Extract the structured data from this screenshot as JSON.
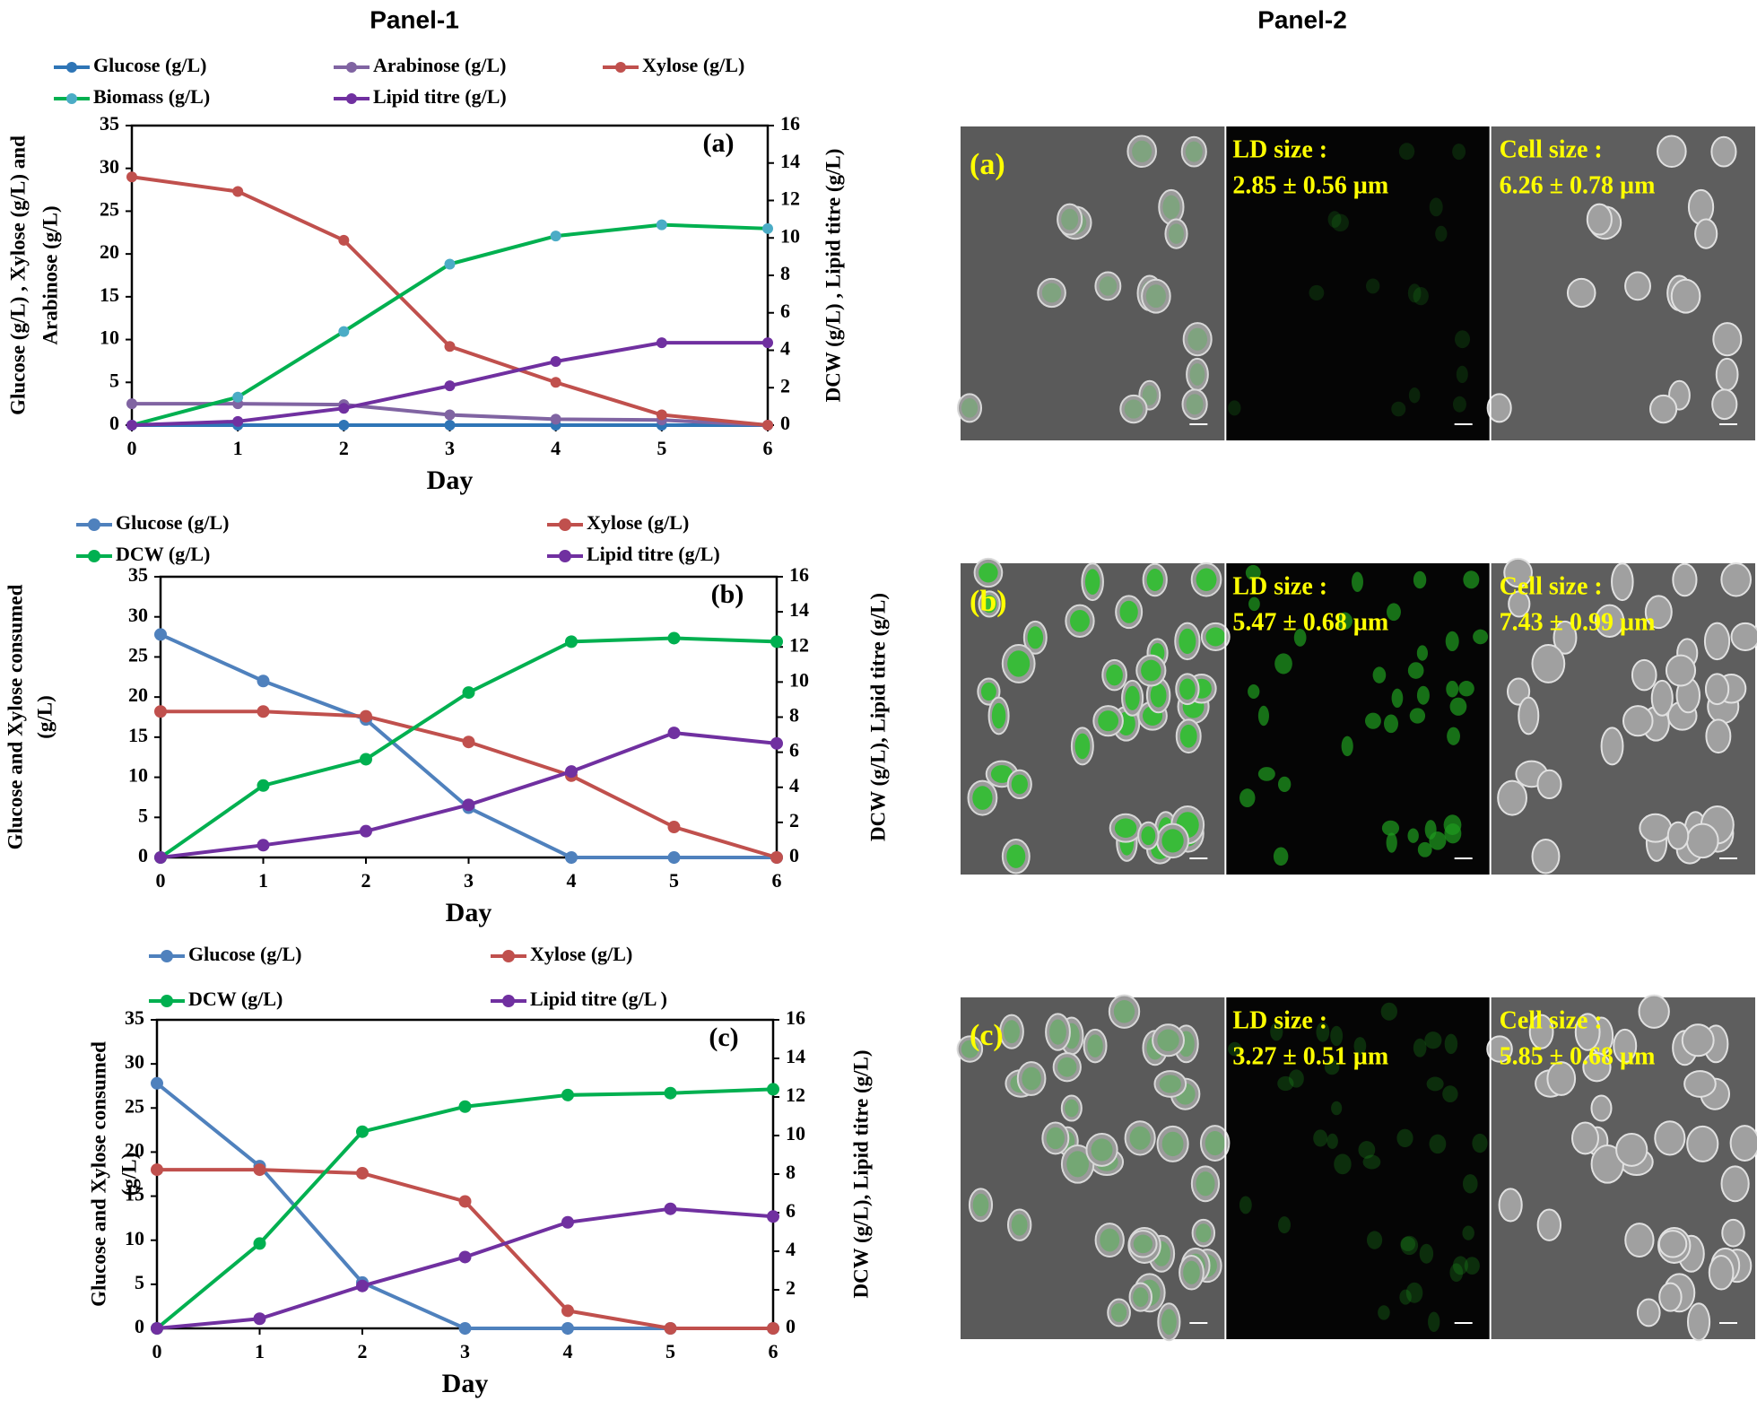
{
  "panels": [
    "Panel-1",
    "Panel-2"
  ],
  "chart_data": [
    {
      "type": "line",
      "annotation": "(a)",
      "xlabel": "Day",
      "ylabel": [
        "Glucose (g/L) , Xylose (g/L) and",
        "Arabinose (g/L)"
      ],
      "y2label": "DCW (g/L) , Lipid titre (g/L)",
      "x": [
        0,
        1,
        2,
        3,
        4,
        5,
        6
      ],
      "xlim": [
        0,
        6
      ],
      "xticks": [
        0,
        1,
        2,
        3,
        4,
        5,
        6
      ],
      "ylim": [
        0,
        35
      ],
      "yticks": [
        0,
        5,
        10,
        15,
        20,
        25,
        30,
        35
      ],
      "y2lim": [
        0,
        16
      ],
      "y2ticks": [
        0,
        2,
        4,
        6,
        8,
        10,
        12,
        14,
        16
      ],
      "series": [
        {
          "name": "Glucose (g/L)",
          "color": "#2e75b6",
          "values": [
            0,
            0,
            0,
            0,
            0,
            0,
            0
          ]
        },
        {
          "name": "Arabinose (g/L)",
          "color": "#8064a2",
          "values": [
            2.5,
            2.5,
            2.4,
            1.2,
            0.7,
            0.6,
            0
          ]
        },
        {
          "name": "Xylose (g/L)",
          "color": "#c0504d",
          "values": [
            29,
            27.3,
            21.6,
            9.2,
            5,
            1.2,
            0
          ]
        },
        {
          "name": "Biomass (g/L)",
          "color": "#00b050",
          "marker_color": "#4bacc6",
          "axis": "y2",
          "values": [
            0,
            1.5,
            5.0,
            8.6,
            10.1,
            10.7,
            10.5
          ]
        },
        {
          "name": "Lipid titre (g/L)",
          "color": "#7030a0",
          "axis": "y2",
          "values": [
            0,
            0.2,
            0.9,
            2.1,
            3.4,
            4.4,
            4.4
          ]
        }
      ]
    },
    {
      "type": "line",
      "annotation": "(b)",
      "xlabel": "Day",
      "ylabel": [
        "Glucose  and Xylose consumed",
        "(g/L)"
      ],
      "y2label": "DCW (g/L),  Lipid titre (g/L)",
      "x": [
        0,
        1,
        2,
        3,
        4,
        5,
        6
      ],
      "xlim": [
        0,
        6
      ],
      "xticks": [
        0,
        1,
        2,
        3,
        4,
        5,
        6
      ],
      "ylim": [
        0,
        35
      ],
      "yticks": [
        0,
        5,
        10,
        15,
        20,
        25,
        30,
        35
      ],
      "y2lim": [
        0,
        16
      ],
      "y2ticks": [
        0,
        2,
        4,
        6,
        8,
        10,
        12,
        14,
        16
      ],
      "series": [
        {
          "name": "Glucose (g/L)",
          "color": "#4f81bd",
          "values": [
            27.8,
            22,
            17.2,
            6.2,
            0,
            0,
            0
          ]
        },
        {
          "name": "Xylose (g/L)",
          "color": "#c0504d",
          "values": [
            18.2,
            18.2,
            17.6,
            14.4,
            10.2,
            3.8,
            0
          ]
        },
        {
          "name": "DCW (g/L)",
          "color": "#00b050",
          "axis": "y2",
          "values": [
            0,
            4.1,
            5.6,
            9.4,
            12.3,
            12.5,
            12.3
          ]
        },
        {
          "name": "Lipid titre (g/L)",
          "color": "#7030a0",
          "axis": "y2",
          "values": [
            0,
            0.7,
            1.5,
            3.0,
            4.9,
            7.1,
            6.5
          ]
        }
      ]
    },
    {
      "type": "line",
      "annotation": "(c)",
      "xlabel": "Day",
      "ylabel": [
        "Glucose and Xylose consumed",
        "(g/L)"
      ],
      "y2label": "DCW (g/L),  Lipid titre (g/L)",
      "x": [
        0,
        1,
        2,
        3,
        4,
        5,
        6
      ],
      "xlim": [
        0,
        6
      ],
      "xticks": [
        0,
        1,
        2,
        3,
        4,
        5,
        6
      ],
      "ylim": [
        0,
        35
      ],
      "yticks": [
        0,
        5,
        10,
        15,
        20,
        25,
        30,
        35
      ],
      "y2lim": [
        0,
        16
      ],
      "y2ticks": [
        0,
        2,
        4,
        6,
        8,
        10,
        12,
        14,
        16
      ],
      "series": [
        {
          "name": "Glucose (g/L)",
          "color": "#4f81bd",
          "values": [
            27.8,
            18.4,
            5.2,
            0,
            0,
            0,
            0
          ]
        },
        {
          "name": "Xylose (g/L)",
          "color": "#c0504d",
          "values": [
            18,
            18,
            17.6,
            14.4,
            2,
            0,
            0
          ]
        },
        {
          "name": "DCW (g/L)",
          "color": "#00b050",
          "axis": "y2",
          "values": [
            0,
            4.4,
            10.2,
            11.5,
            12.1,
            12.2,
            12.4
          ]
        },
        {
          "name": "Lipid titre (g/L )",
          "color": "#7030a0",
          "axis": "y2",
          "values": [
            0,
            0.5,
            2.2,
            3.7,
            5.5,
            6.2,
            5.8
          ]
        }
      ]
    }
  ],
  "micrographs": [
    {
      "label": "(a)",
      "ld_title": "LD size :",
      "ld_value": "2.85 ± 0.56 µm",
      "cell_title": "Cell size :",
      "cell_value": "6.26 ± 0.78 µm"
    },
    {
      "label": "(b)",
      "ld_title": "LD size :",
      "ld_value": "5.47 ± 0.68 µm",
      "cell_title": "Cell size :",
      "cell_value": "7.43 ± 0.99 µm"
    },
    {
      "label": "(c)",
      "ld_title": "LD size :",
      "ld_value": "3.27 ± 0.51 µm",
      "cell_title": "Cell size :",
      "cell_value": "5.85 ± 0.68 µm"
    }
  ]
}
